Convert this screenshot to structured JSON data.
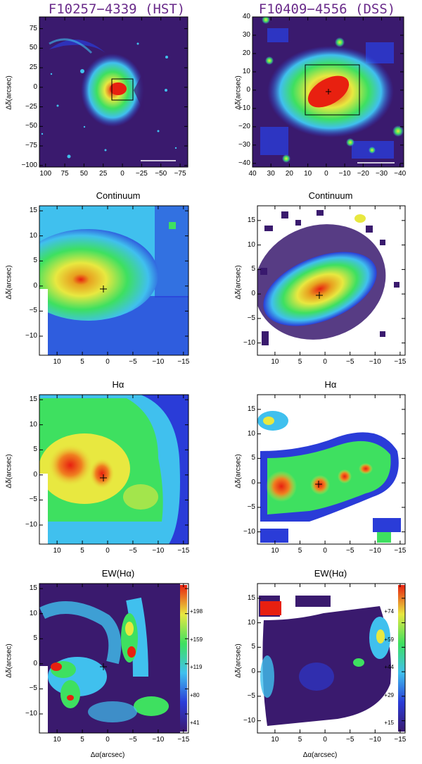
{
  "panels": [
    {
      "id": "p1",
      "title": "F10257−4339 (HST)",
      "title_style": "big",
      "xticks": [
        {
          "v": 100,
          "l": "100"
        },
        {
          "v": 75,
          "l": "75"
        },
        {
          "v": 50,
          "l": "50"
        },
        {
          "v": 25,
          "l": "25"
        },
        {
          "v": 0,
          "l": "0"
        },
        {
          "v": -25,
          "l": "−25"
        },
        {
          "v": -50,
          "l": "−50"
        },
        {
          "v": -75,
          "l": "−75"
        }
      ],
      "yticks": [
        {
          "v": 75,
          "l": "75"
        },
        {
          "v": 50,
          "l": "50"
        },
        {
          "v": 25,
          "l": "25"
        },
        {
          "v": 0,
          "l": "0"
        },
        {
          "v": -25,
          "l": "−25"
        },
        {
          "v": -50,
          "l": "−50"
        },
        {
          "v": -75,
          "l": "−75"
        },
        {
          "v": -100,
          "l": "−100"
        }
      ],
      "ylabel": "Δδ(arcsec)",
      "xlabel": ""
    },
    {
      "id": "p2",
      "title": "F10409−4556 (DSS)",
      "title_style": "big",
      "xticks": [
        {
          "v": 40,
          "l": "40"
        },
        {
          "v": 30,
          "l": "30"
        },
        {
          "v": 20,
          "l": "20"
        },
        {
          "v": 10,
          "l": "10"
        },
        {
          "v": 0,
          "l": "0"
        },
        {
          "v": -10,
          "l": "−10"
        },
        {
          "v": -20,
          "l": "−20"
        },
        {
          "v": -30,
          "l": "−30"
        },
        {
          "v": -40,
          "l": "−40"
        }
      ],
      "yticks": [
        {
          "v": 40,
          "l": "40"
        },
        {
          "v": 30,
          "l": "30"
        },
        {
          "v": 20,
          "l": "20"
        },
        {
          "v": 10,
          "l": "10"
        },
        {
          "v": 0,
          "l": "0"
        },
        {
          "v": -10,
          "l": "−10"
        },
        {
          "v": -20,
          "l": "−20"
        },
        {
          "v": -30,
          "l": "−30"
        },
        {
          "v": -40,
          "l": "−40"
        }
      ],
      "ylabel": "Δδ(arcsec)",
      "xlabel": ""
    },
    {
      "id": "p3",
      "title": "Continuum",
      "title_style": "small",
      "xticks": [
        {
          "v": 10,
          "l": "10"
        },
        {
          "v": 5,
          "l": "5"
        },
        {
          "v": 0,
          "l": "0"
        },
        {
          "v": -5,
          "l": "−5"
        },
        {
          "v": -10,
          "l": "−10"
        },
        {
          "v": -15,
          "l": "−15"
        }
      ],
      "yticks": [
        {
          "v": 15,
          "l": "15"
        },
        {
          "v": 10,
          "l": "10"
        },
        {
          "v": 5,
          "l": "5"
        },
        {
          "v": 0,
          "l": "0"
        },
        {
          "v": -5,
          "l": "−5"
        },
        {
          "v": -10,
          "l": "−10"
        }
      ],
      "ylabel": "Δδ(arcsec)",
      "xlabel": ""
    },
    {
      "id": "p4",
      "title": "Continuum",
      "title_style": "small",
      "xticks": [
        {
          "v": 10,
          "l": "10"
        },
        {
          "v": 5,
          "l": "5"
        },
        {
          "v": 0,
          "l": "0"
        },
        {
          "v": -5,
          "l": "−5"
        },
        {
          "v": -10,
          "l": "−10"
        },
        {
          "v": -15,
          "l": "−15"
        }
      ],
      "yticks": [
        {
          "v": 15,
          "l": "15"
        },
        {
          "v": 10,
          "l": "10"
        },
        {
          "v": 5,
          "l": "5"
        },
        {
          "v": 0,
          "l": "0"
        },
        {
          "v": -5,
          "l": "−5"
        },
        {
          "v": -10,
          "l": "−10"
        }
      ],
      "ylabel": "Δδ(arcsec)",
      "xlabel": ""
    },
    {
      "id": "p5",
      "title": "Hα",
      "title_style": "small",
      "xticks": [
        {
          "v": 10,
          "l": "10"
        },
        {
          "v": 5,
          "l": "5"
        },
        {
          "v": 0,
          "l": "0"
        },
        {
          "v": -5,
          "l": "−5"
        },
        {
          "v": -10,
          "l": "−10"
        },
        {
          "v": -15,
          "l": "−15"
        }
      ],
      "yticks": [
        {
          "v": 15,
          "l": "15"
        },
        {
          "v": 10,
          "l": "10"
        },
        {
          "v": 5,
          "l": "5"
        },
        {
          "v": 0,
          "l": "0"
        },
        {
          "v": -5,
          "l": "−5"
        },
        {
          "v": -10,
          "l": "−10"
        }
      ],
      "ylabel": "Δδ(arcsec)",
      "xlabel": ""
    },
    {
      "id": "p6",
      "title": "Hα",
      "title_style": "small",
      "xticks": [
        {
          "v": 10,
          "l": "10"
        },
        {
          "v": 5,
          "l": "5"
        },
        {
          "v": 0,
          "l": "0"
        },
        {
          "v": -5,
          "l": "−5"
        },
        {
          "v": -10,
          "l": "−10"
        },
        {
          "v": -15,
          "l": "−15"
        }
      ],
      "yticks": [
        {
          "v": 15,
          "l": "15"
        },
        {
          "v": 10,
          "l": "10"
        },
        {
          "v": 5,
          "l": "5"
        },
        {
          "v": 0,
          "l": "0"
        },
        {
          "v": -5,
          "l": "−5"
        },
        {
          "v": -10,
          "l": "−10"
        }
      ],
      "ylabel": "Δδ(arcsec)",
      "xlabel": ""
    },
    {
      "id": "p7",
      "title": "EW(Hα)",
      "title_style": "small",
      "xticks": [
        {
          "v": 10,
          "l": "10"
        },
        {
          "v": 5,
          "l": "5"
        },
        {
          "v": 0,
          "l": "0"
        },
        {
          "v": -5,
          "l": "−5"
        },
        {
          "v": -10,
          "l": "−10"
        },
        {
          "v": -15,
          "l": "−15"
        }
      ],
      "yticks": [
        {
          "v": 15,
          "l": "15"
        },
        {
          "v": 10,
          "l": "10"
        },
        {
          "v": 5,
          "l": "5"
        },
        {
          "v": 0,
          "l": "0"
        },
        {
          "v": -5,
          "l": "−5"
        },
        {
          "v": -10,
          "l": "−10"
        }
      ],
      "ylabel": "Δδ(arcsec)",
      "xlabel": "Δα(arcsec)",
      "colorbar": [
        "+198",
        "+159",
        "+119",
        "+80",
        "+41"
      ]
    },
    {
      "id": "p8",
      "title": "EW(Hα)",
      "title_style": "small",
      "xticks": [
        {
          "v": 10,
          "l": "10"
        },
        {
          "v": 5,
          "l": "5"
        },
        {
          "v": 0,
          "l": "0"
        },
        {
          "v": -5,
          "l": "−5"
        },
        {
          "v": -10,
          "l": "−10"
        },
        {
          "v": -15,
          "l": "−15"
        }
      ],
      "yticks": [
        {
          "v": 15,
          "l": "15"
        },
        {
          "v": 10,
          "l": "10"
        },
        {
          "v": 5,
          "l": "5"
        },
        {
          "v": 0,
          "l": "0"
        },
        {
          "v": -5,
          "l": "−5"
        },
        {
          "v": -10,
          "l": "−10"
        }
      ],
      "ylabel": "Δδ(arcsec)",
      "xlabel": "Δα(arcsec)",
      "colorbar": [
        "+74",
        "+59",
        "+44",
        "+29",
        "+15"
      ]
    }
  ],
  "colors": {
    "dark": "#3a1a6e",
    "blue": "#2a3cd8",
    "cyan": "#40c0ee",
    "green": "#3ee060",
    "yellow": "#e8e840",
    "red": "#e82010"
  }
}
